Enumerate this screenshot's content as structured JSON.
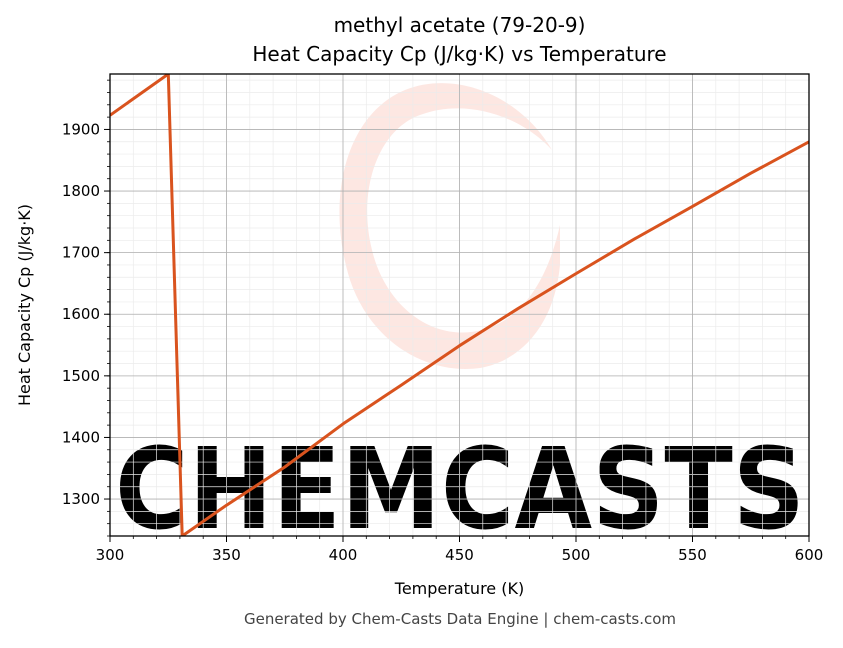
{
  "chart_data": {
    "type": "line",
    "title_line1": "methyl acetate (79-20-9)",
    "title_line2": "Heat Capacity Cp (J/kg·K) vs Temperature",
    "xlabel": "Temperature (K)",
    "ylabel": "Heat Capacity Cp (J/kg·K)",
    "xlim": [
      300,
      600
    ],
    "ylim": [
      1240,
      1990
    ],
    "x_ticks": [
      300,
      350,
      400,
      450,
      500,
      550,
      600
    ],
    "y_ticks": [
      1300,
      1400,
      1500,
      1600,
      1700,
      1800,
      1900
    ],
    "grid": true,
    "series": [
      {
        "color": "#d9531e",
        "points": [
          [
            300,
            1923
          ],
          [
            325,
            1990
          ],
          [
            331,
            1240
          ],
          [
            350,
            1290
          ],
          [
            375,
            1352
          ],
          [
            400,
            1422
          ],
          [
            425,
            1485
          ],
          [
            450,
            1549
          ],
          [
            475,
            1609
          ],
          [
            500,
            1666
          ],
          [
            525,
            1722
          ],
          [
            550,
            1775
          ],
          [
            575,
            1829
          ],
          [
            600,
            1880
          ]
        ]
      }
    ]
  },
  "watermark": {
    "text": "CHEMCASTS",
    "color": "#fde3dd"
  },
  "footer": {
    "text": "Generated by Chem-Casts Data Engine | chem-casts.com"
  }
}
